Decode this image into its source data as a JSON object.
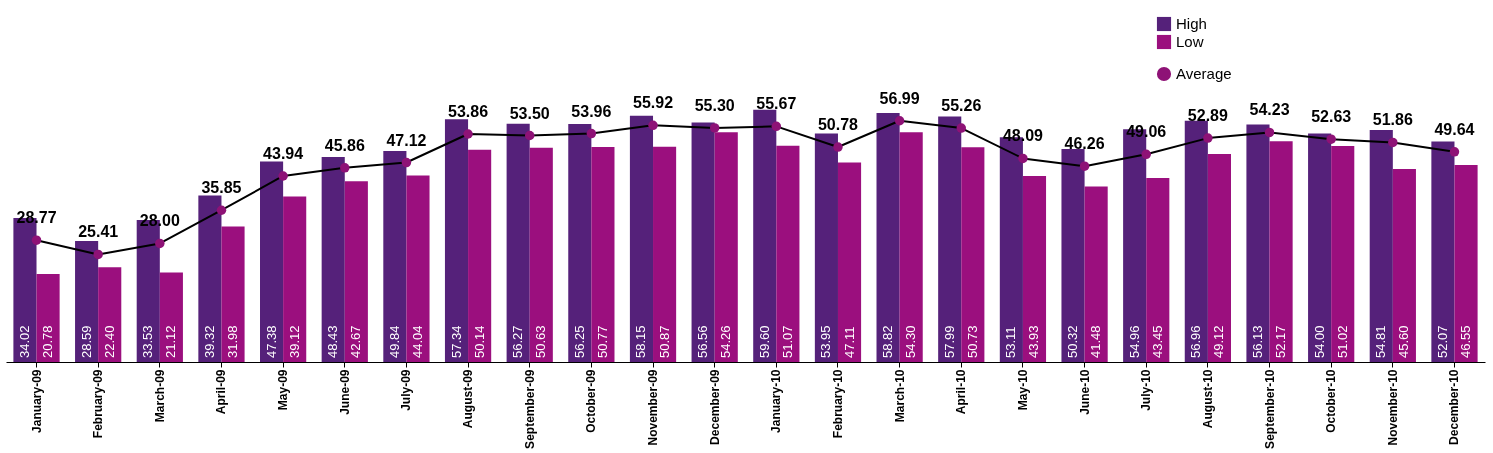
{
  "chart_data": {
    "type": "bar",
    "categories": [
      "January-09",
      "February-09",
      "March-09",
      "April-09",
      "May-09",
      "June-09",
      "July-09",
      "August-09",
      "September-09",
      "October-09",
      "November-09",
      "December-09",
      "January-10",
      "February-10",
      "March-10",
      "April-10",
      "May-10",
      "June-10",
      "July-10",
      "August-10",
      "September-10",
      "October-10",
      "November-10",
      "December-10"
    ],
    "series": [
      {
        "name": "High",
        "color": "#55217a",
        "values": [
          34.02,
          28.59,
          33.53,
          39.32,
          47.38,
          48.43,
          49.84,
          57.34,
          56.27,
          56.25,
          58.15,
          56.56,
          59.6,
          53.95,
          58.82,
          57.99,
          53.11,
          50.32,
          54.96,
          56.96,
          56.13,
          54.0,
          54.81,
          52.07
        ],
        "value_labels": [
          "34.02",
          "28.59",
          "33.53",
          "39.32",
          "47.38",
          "48.43",
          "49.84",
          "57.34",
          "56.27",
          "56.25",
          "58.15",
          "56.56",
          "59.60",
          "53.95",
          "58.82",
          "57.99",
          "53.11",
          "50.32",
          "54.96",
          "56.96",
          "56.13",
          "54.00",
          "54.81",
          "52.07"
        ]
      },
      {
        "name": "Low",
        "color": "#9b0f7e",
        "values": [
          20.78,
          22.4,
          21.12,
          31.98,
          39.12,
          42.67,
          44.04,
          50.14,
          50.63,
          50.77,
          50.87,
          54.26,
          51.07,
          47.11,
          54.3,
          50.73,
          43.93,
          41.48,
          43.45,
          49.12,
          52.17,
          51.02,
          45.6,
          46.55
        ],
        "value_labels": [
          "20.78",
          "22.40",
          "21.12",
          "31.98",
          "39.12",
          "42.67",
          "44.04",
          "50.14",
          "50.63",
          "50.77",
          "50.87",
          "54.26",
          "51.07",
          "47.11",
          "54.30",
          "50.73",
          "43.93",
          "41.48",
          "43.45",
          "49.12",
          "52.17",
          "51.02",
          "45.60",
          "46.55"
        ]
      },
      {
        "name": "Average",
        "type": "line",
        "color": "#8e1276",
        "values": [
          28.77,
          25.41,
          28.0,
          35.85,
          43.94,
          45.86,
          47.12,
          53.86,
          53.5,
          53.96,
          55.92,
          55.3,
          55.67,
          50.78,
          56.99,
          55.26,
          48.09,
          46.26,
          49.06,
          52.89,
          54.23,
          52.63,
          51.86,
          49.64
        ],
        "value_labels": [
          "28.77",
          "25.41",
          "28.00",
          "35.85",
          "43.94",
          "45.86",
          "47.12",
          "53.86",
          "53.50",
          "53.96",
          "55.92",
          "55.30",
          "55.67",
          "50.78",
          "56.99",
          "55.26",
          "48.09",
          "46.26",
          "49.06",
          "52.89",
          "54.23",
          "52.63",
          "51.86",
          "49.64"
        ]
      }
    ],
    "legend": "top right",
    "marker": "circle",
    "grid": false,
    "tick_labels": "x"
  }
}
